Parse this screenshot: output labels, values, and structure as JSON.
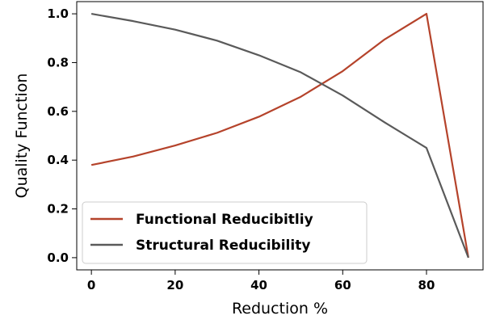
{
  "chart_data": {
    "type": "line",
    "xlabel": "Reduction %",
    "ylabel": "Quality Function",
    "xlim": [
      -3.5,
      93.5
    ],
    "ylim": [
      -0.05,
      1.05
    ],
    "xticks": [
      0,
      20,
      40,
      60,
      80
    ],
    "yticks": [
      0.0,
      0.2,
      0.4,
      0.6,
      0.8,
      1.0
    ],
    "xtick_labels": [
      "0",
      "20",
      "40",
      "60",
      "80"
    ],
    "ytick_labels": [
      "0.0",
      "0.2",
      "0.4",
      "0.6",
      "0.8",
      "1.0"
    ],
    "grid": false,
    "legend_position": "lower-left",
    "x": [
      0,
      10,
      20,
      30,
      40,
      50,
      60,
      70,
      80,
      90
    ],
    "series": [
      {
        "name": "Functional Reducibitliy",
        "color": "#b5432b",
        "values": [
          0.38,
          0.415,
          0.46,
          0.512,
          0.578,
          0.66,
          0.765,
          0.895,
          1.0,
          0.0
        ]
      },
      {
        "name": "Structural Reducibility",
        "color": "#5a5a5a",
        "values": [
          1.0,
          0.97,
          0.935,
          0.89,
          0.83,
          0.76,
          0.665,
          0.555,
          0.45,
          0.0
        ]
      }
    ]
  }
}
